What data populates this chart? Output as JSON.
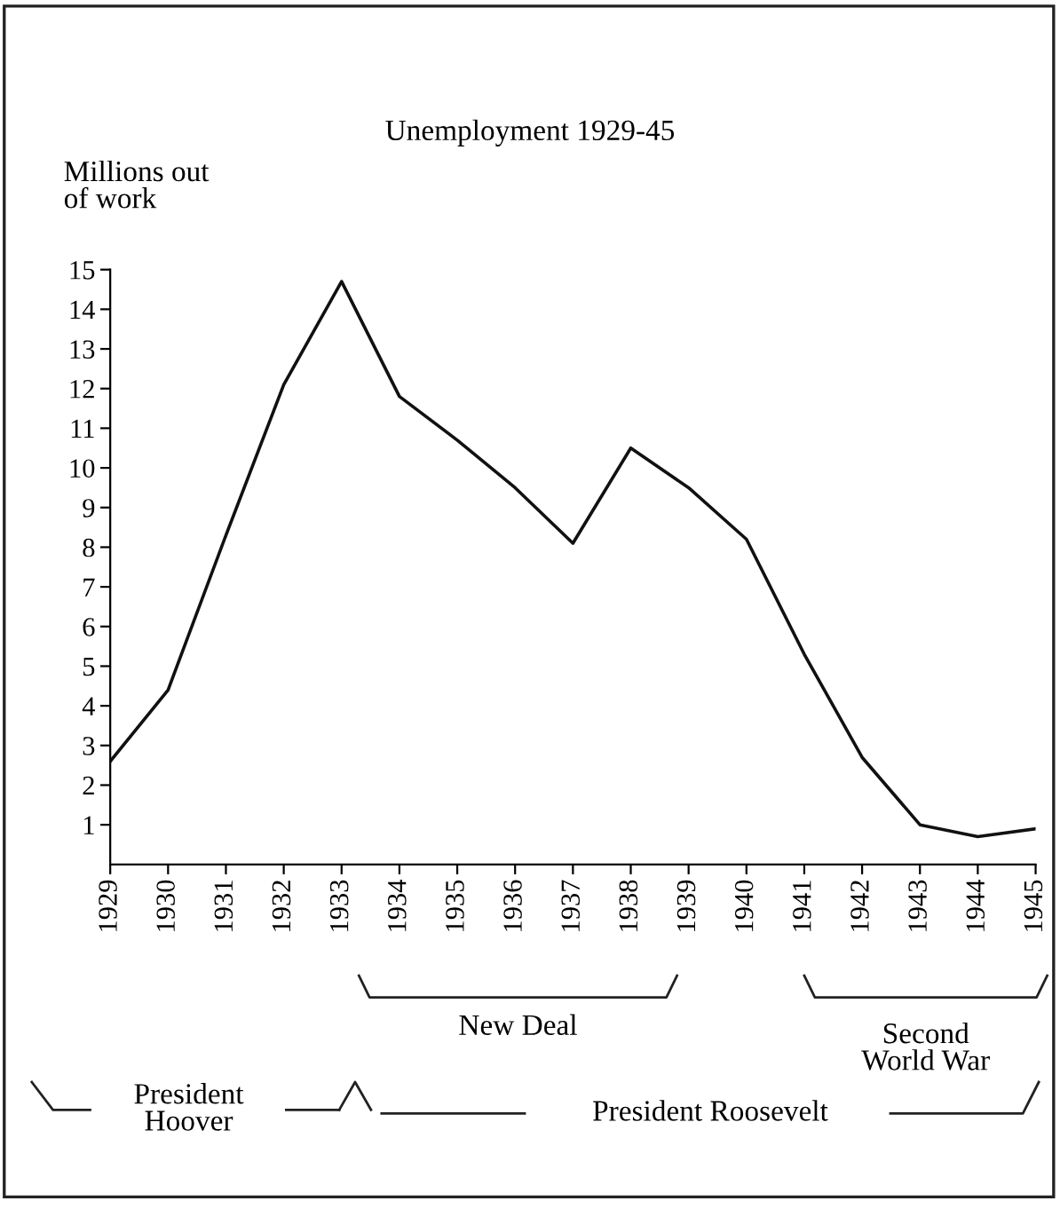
{
  "chart_data": {
    "type": "line",
    "title": "Unemployment 1929-45",
    "ylabel": "Millions out\nof work",
    "x": [
      1929,
      1930,
      1931,
      1932,
      1933,
      1934,
      1935,
      1936,
      1937,
      1938,
      1939,
      1940,
      1941,
      1942,
      1943,
      1944,
      1945
    ],
    "series": [
      {
        "color": "#111111",
        "values": [
          2.6,
          4.4,
          8.3,
          12.1,
          14.7,
          11.8,
          10.7,
          9.5,
          8.1,
          10.5,
          9.5,
          8.2,
          5.3,
          2.7,
          1.0,
          0.7,
          0.9
        ]
      }
    ],
    "xlim": [
      1929,
      1945
    ],
    "xticks": [
      {
        "value": 1929,
        "label": "1929"
      },
      {
        "value": 1930,
        "label": "1930"
      },
      {
        "value": 1931,
        "label": "1931"
      },
      {
        "value": 1932,
        "label": "1932"
      },
      {
        "value": 1933,
        "label": "1933"
      },
      {
        "value": 1934,
        "label": "1934"
      },
      {
        "value": 1935,
        "label": "1935"
      },
      {
        "value": 1936,
        "label": "1936"
      },
      {
        "value": 1937,
        "label": "1937"
      },
      {
        "value": 1938,
        "label": "1938"
      },
      {
        "value": 1939,
        "label": "1939"
      },
      {
        "value": 1940,
        "label": "1940"
      },
      {
        "value": 1941,
        "label": "1941"
      },
      {
        "value": 1942,
        "label": "1942"
      },
      {
        "value": 1943,
        "label": "1943"
      },
      {
        "value": 1944,
        "label": "1944"
      },
      {
        "value": 1945,
        "label": "1945"
      }
    ],
    "ylim": [
      0,
      15
    ],
    "yticks": [
      1,
      2,
      3,
      4,
      5,
      6,
      7,
      8,
      9,
      10,
      11,
      12,
      13,
      14,
      15
    ],
    "annotations": [
      "New Deal",
      "Second\nWorld War",
      "President\nHoover",
      "President Roosevelt"
    ],
    "grid": false,
    "marker": "none",
    "line_style": "solid"
  }
}
